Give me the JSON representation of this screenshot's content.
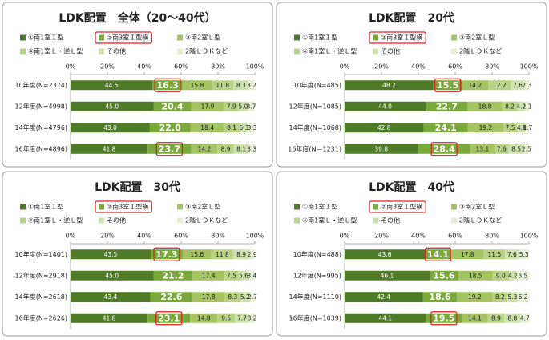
{
  "chart_data": [
    {
      "type": "bar",
      "orientation": "horizontal",
      "stacked": true,
      "title": "LDK配置　全体（20～40代）",
      "categories": [
        "10年度(N=2374)",
        "12年度(N=4998)",
        "14年度(N=4796)",
        "16年度(N=4896)"
      ],
      "series": [
        {
          "name": "①南1室Ｉ型",
          "color": "#4f7a28",
          "values": [
            44.5,
            45.0,
            43.0,
            41.8
          ],
          "value_labels": [
            "44.5",
            "45.0",
            "43.0",
            "41.8"
          ]
        },
        {
          "name": "②南3室Ｉ型横",
          "color": "#7aa83a",
          "values": [
            16.3,
            20.4,
            22.0,
            23.7
          ],
          "value_labels": [
            "16.3",
            "20.4",
            "22.0",
            "23.7"
          ]
        },
        {
          "name": "③南2室Ｌ型",
          "color": "#a4c463",
          "values": [
            15.8,
            17.9,
            18.4,
            14.2
          ],
          "value_labels": [
            "15.8",
            "17.9",
            "18.4",
            "14.2"
          ]
        },
        {
          "name": "④南1室Ｌ・逆Ｌ型",
          "color": "#b9d386",
          "values": [
            11.8,
            7.9,
            8.1,
            8.9
          ],
          "value_labels": [
            "11.8",
            "7.9",
            "8.1",
            "8.9"
          ]
        },
        {
          "name": "その他",
          "color": "#cfe1ad",
          "values": [
            8.3,
            5.0,
            5.3,
            8.1
          ],
          "value_labels": [
            "8.3",
            "5.0",
            "5.3",
            "8.1"
          ]
        },
        {
          "name": "2階ＬＤＫなど",
          "color": "#e6efd5",
          "values": [
            3.2,
            3.7,
            3.3,
            3.3
          ],
          "value_labels": [
            "3.2",
            "3.7",
            "3.3",
            "3.3"
          ]
        }
      ],
      "xlim": [
        0,
        100
      ],
      "xticks": [
        {
          "value": 0,
          "label": "0%"
        },
        {
          "value": 20,
          "label": "20%"
        },
        {
          "value": 40,
          "label": "40%"
        },
        {
          "value": 60,
          "label": "60%"
        },
        {
          "value": 80,
          "label": "80%"
        },
        {
          "value": 100,
          "label": "100%"
        }
      ]
    },
    {
      "type": "bar",
      "orientation": "horizontal",
      "stacked": true,
      "title": "LDK配置　20代",
      "categories": [
        "10年度(N=485)",
        "12年度(N=1085)",
        "14年度(N=1068)",
        "16年度(N＝1231)"
      ],
      "series": [
        {
          "name": "①南1室Ｉ型",
          "color": "#4f7a28",
          "values": [
            48.2,
            44.0,
            42.8,
            39.8
          ],
          "value_labels": [
            "48.2",
            "44.0",
            "42.8",
            "39.8"
          ]
        },
        {
          "name": "②南3室Ｉ型横",
          "color": "#7aa83a",
          "values": [
            15.5,
            22.7,
            24.1,
            28.4
          ],
          "value_labels": [
            "15.5",
            "22.7",
            "24.1",
            "28.4"
          ]
        },
        {
          "name": "③南2室Ｌ型",
          "color": "#a4c463",
          "values": [
            14.2,
            18.8,
            19.2,
            13.1
          ],
          "value_labels": [
            "14.2",
            "18.8",
            "19.2",
            "13.1"
          ]
        },
        {
          "name": "④南1室Ｌ・逆Ｌ型",
          "color": "#b9d386",
          "values": [
            12.2,
            8.2,
            7.5,
            7.6
          ],
          "value_labels": [
            "12.2",
            "8.2",
            "7.5",
            "7.6"
          ]
        },
        {
          "name": "その他",
          "color": "#cfe1ad",
          "values": [
            7.6,
            4.2,
            4.8,
            8.5
          ],
          "value_labels": [
            "7.6",
            "4.2",
            "4.8",
            "8.5"
          ]
        },
        {
          "name": "2階ＬＤＫなど",
          "color": "#e6efd5",
          "values": [
            2.3,
            2.1,
            1.7,
            2.5
          ],
          "value_labels": [
            "2.3",
            "2.1",
            "1.7",
            "2.5"
          ]
        }
      ],
      "xlim": [
        0,
        100
      ],
      "xticks": [
        {
          "value": 0,
          "label": "0%"
        },
        {
          "value": 20,
          "label": "20%"
        },
        {
          "value": 40,
          "label": "40%"
        },
        {
          "value": 60,
          "label": "60%"
        },
        {
          "value": 80,
          "label": "80%"
        },
        {
          "value": 100,
          "label": "100%"
        }
      ]
    },
    {
      "type": "bar",
      "orientation": "horizontal",
      "stacked": true,
      "title": "LDK配置　30代",
      "categories": [
        "10年度(N=1401)",
        "12年度(N=2918)",
        "14年度(N=2618)",
        "16年度(N=2626)"
      ],
      "series": [
        {
          "name": "①南1室Ｉ型",
          "color": "#4f7a28",
          "values": [
            43.5,
            45.0,
            43.4,
            41.8
          ],
          "value_labels": [
            "43.5",
            "45.0",
            "43.4",
            "41.8"
          ]
        },
        {
          "name": "②南3室Ｉ型横",
          "color": "#7aa83a",
          "values": [
            17.3,
            21.2,
            22.6,
            23.1
          ],
          "value_labels": [
            "17.3",
            "21.2",
            "22.6",
            "23.1"
          ]
        },
        {
          "name": "③南2室Ｌ型",
          "color": "#a4c463",
          "values": [
            15.6,
            17.4,
            17.8,
            14.8
          ],
          "value_labels": [
            "15.6",
            "17.4",
            "17.8",
            "14.8"
          ]
        },
        {
          "name": "④南1室Ｌ・逆Ｌ型",
          "color": "#b9d386",
          "values": [
            11.8,
            7.5,
            8.3,
            9.5
          ],
          "value_labels": [
            "11.8",
            "7.5",
            "8.3",
            "9.5"
          ]
        },
        {
          "name": "その他",
          "color": "#cfe1ad",
          "values": [
            8.9,
            5.6,
            5.2,
            7.7
          ],
          "value_labels": [
            "8.9",
            "5.6",
            "5.2",
            "7.7"
          ]
        },
        {
          "name": "2階ＬＤＫなど",
          "color": "#e6efd5",
          "values": [
            2.9,
            3.4,
            2.7,
            3.2
          ],
          "value_labels": [
            "2.9",
            "3.4",
            "2.7",
            "3.2"
          ]
        }
      ],
      "xlim": [
        0,
        100
      ],
      "xticks": [
        {
          "value": 0,
          "label": "0%"
        },
        {
          "value": 20,
          "label": "20%"
        },
        {
          "value": 40,
          "label": "40%"
        },
        {
          "value": 60,
          "label": "60%"
        },
        {
          "value": 80,
          "label": "80%"
        },
        {
          "value": 100,
          "label": "100%"
        }
      ]
    },
    {
      "type": "bar",
      "orientation": "horizontal",
      "stacked": true,
      "title": "LDK配置　40代",
      "categories": [
        "10年度(N=488)",
        "12年度(N=995)",
        "14年度(N=1110)",
        "16年度(N=1039)"
      ],
      "series": [
        {
          "name": "①南1室Ｉ型",
          "color": "#4f7a28",
          "values": [
            43.6,
            46.1,
            42.4,
            44.1
          ],
          "value_labels": [
            "43.6",
            "46.1",
            "42.4",
            "44.1"
          ]
        },
        {
          "name": "②南3室Ｉ型横",
          "color": "#7aa83a",
          "values": [
            14.1,
            15.6,
            18.6,
            19.5
          ],
          "value_labels": [
            "14.1",
            "15.6",
            "18.6",
            "19.5"
          ]
        },
        {
          "name": "③南2室Ｌ型",
          "color": "#a4c463",
          "values": [
            17.8,
            18.5,
            19.2,
            14.1
          ],
          "value_labels": [
            "17.8",
            "18.5",
            "19.2",
            "14.1"
          ]
        },
        {
          "name": "④南1室Ｌ・逆Ｌ型",
          "color": "#b9d386",
          "values": [
            11.5,
            9.0,
            8.2,
            8.9
          ],
          "value_labels": [
            "11.5",
            "9.0",
            "8.2",
            "8.9"
          ]
        },
        {
          "name": "その他",
          "color": "#cfe1ad",
          "values": [
            7.6,
            4.2,
            5.3,
            8.8
          ],
          "value_labels": [
            "7.6",
            "4.2",
            "5.3",
            "8.8"
          ]
        },
        {
          "name": "2階ＬＤＫなど",
          "color": "#e6efd5",
          "values": [
            5.3,
            6.5,
            6.2,
            4.7
          ],
          "value_labels": [
            "5.3",
            "6.5",
            "6.2",
            "4.7"
          ]
        }
      ],
      "xlim": [
        0,
        100
      ],
      "xticks": [
        {
          "value": 0,
          "label": "0%"
        },
        {
          "value": 20,
          "label": "20%"
        },
        {
          "value": 40,
          "label": "40%"
        },
        {
          "value": 60,
          "label": "60%"
        },
        {
          "value": 80,
          "label": "80%"
        },
        {
          "value": 100,
          "label": "100%"
        }
      ]
    }
  ]
}
